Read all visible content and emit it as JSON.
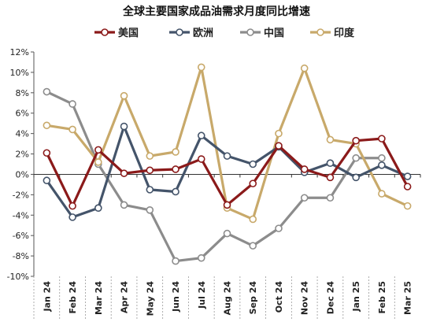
{
  "chart_data": {
    "type": "line",
    "title": "全球主要国家成品油需求月度同比增速",
    "categories": [
      "Jan 24",
      "Feb 24",
      "Mar 24",
      "Apr 24",
      "May 24",
      "Jun 24",
      "Jul 24",
      "Aug 24",
      "Sep 24",
      "Oct 24",
      "Nov 24",
      "Dec 24",
      "Jan 25",
      "Feb 25",
      "Mar 25"
    ],
    "ylim": [
      -10,
      12
    ],
    "yticks": [
      "12%",
      "10%",
      "8%",
      "6%",
      "4%",
      "2%",
      "0%",
      "-2%",
      "-4%",
      "-6%",
      "-8%",
      "-10%"
    ],
    "grid": false,
    "legend_position": "top",
    "series": [
      {
        "name": "美国",
        "color": "#8B1A1A",
        "values": [
          2.1,
          -3.1,
          2.4,
          0.1,
          0.4,
          0.5,
          1.5,
          -3.0,
          -0.9,
          2.8,
          0.5,
          -0.3,
          3.3,
          3.5,
          -1.2
        ]
      },
      {
        "name": "欧洲",
        "color": "#44546A",
        "values": [
          -0.6,
          -4.2,
          -3.3,
          4.7,
          -1.5,
          -1.7,
          3.8,
          1.8,
          1.0,
          2.7,
          0.2,
          1.1,
          -0.3,
          0.9,
          -0.2
        ]
      },
      {
        "name": "中国",
        "color": "#8C8C8C",
        "values": [
          8.1,
          6.9,
          1.0,
          -3.0,
          -3.5,
          -8.5,
          -8.2,
          -5.8,
          -7.0,
          -5.3,
          -2.3,
          -2.3,
          1.6,
          1.6,
          null
        ]
      },
      {
        "name": "印度",
        "color": "#C8A96A",
        "values": [
          4.8,
          4.4,
          1.2,
          7.7,
          1.8,
          2.2,
          10.5,
          -3.3,
          -4.4,
          4.0,
          10.4,
          3.4,
          3.0,
          -1.9,
          -3.1
        ]
      }
    ]
  }
}
